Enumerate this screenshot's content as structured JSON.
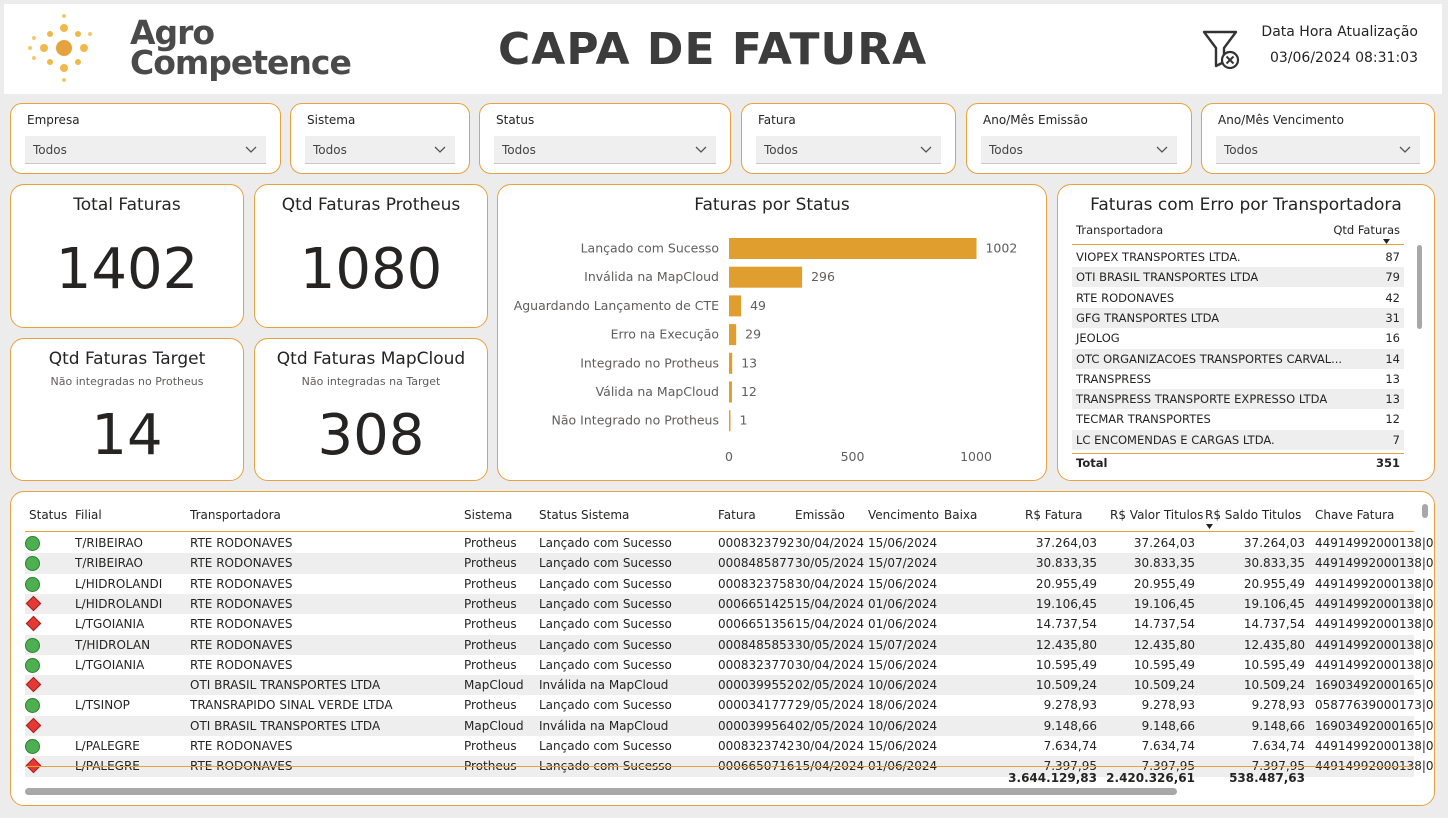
{
  "header": {
    "logo_text_line1": "Agro",
    "logo_text_line2": "Competence",
    "title": "CAPA DE FATURA",
    "update_label": "Data Hora Atualização",
    "update_value": "03/06/2024 08:31:03",
    "filter_icon": "clear-filter-icon"
  },
  "slicers": [
    {
      "label": "Empresa",
      "value": "Todos"
    },
    {
      "label": "Sistema",
      "value": "Todos"
    },
    {
      "label": "Status",
      "value": "Todos"
    },
    {
      "label": "Fatura",
      "value": "Todos"
    },
    {
      "label": "Ano/Mês Emissão",
      "value": "Todos"
    },
    {
      "label": "Ano/Mês Vencimento",
      "value": "Todos"
    }
  ],
  "cards": {
    "total": {
      "title": "Total Faturas",
      "value": "1402"
    },
    "protheus": {
      "title": "Qtd Faturas Protheus",
      "value": "1080"
    },
    "target": {
      "title": "Qtd Faturas Target",
      "subtitle": "Não integradas no Protheus",
      "value": "14"
    },
    "mapcloud": {
      "title": "Qtd Faturas MapCloud",
      "subtitle": "Não integradas na Target",
      "value": "308"
    }
  },
  "chart_data": {
    "type": "bar",
    "orientation": "horizontal",
    "title": "Faturas por Status",
    "categories": [
      "Lançado com Sucesso",
      "Inválida na MapCloud",
      "Aguardando Lançamento de CTE",
      "Erro na Execução",
      "Integrado no Protheus",
      "Válida na MapCloud",
      "Não Integrado no Protheus"
    ],
    "values": [
      1002,
      296,
      49,
      29,
      13,
      12,
      1
    ],
    "xlim": [
      0,
      1000
    ],
    "xticks": [
      "0",
      "500",
      "1000"
    ],
    "bar_color": "#e09e2f",
    "grid": false
  },
  "erro_table": {
    "title": "Faturas com Erro por Transportadora",
    "col_name": "Transportadora",
    "col_value": "Qtd Faturas",
    "rows": [
      {
        "name": "VIOPEX TRANSPORTES LTDA.",
        "value": "87"
      },
      {
        "name": "OTI BRASIL TRANSPORTES LTDA",
        "value": "79"
      },
      {
        "name": "RTE RODONAVES",
        "value": "42"
      },
      {
        "name": "GFG TRANSPORTES LTDA",
        "value": "31"
      },
      {
        "name": "JEOLOG",
        "value": "16"
      },
      {
        "name": "OTC ORGANIZACOES TRANSPORTES CARVAL...",
        "value": "14"
      },
      {
        "name": "TRANSPRESS",
        "value": "13"
      },
      {
        "name": "TRANSPRESS TRANSPORTE EXPRESSO LTDA",
        "value": "13"
      },
      {
        "name": "TECMAR TRANSPORTES",
        "value": "12"
      },
      {
        "name": "LC ENCOMENDAS E CARGAS LTDA.",
        "value": "7"
      }
    ],
    "total_label": "Total",
    "total_value": "351"
  },
  "grid": {
    "columns": [
      "Status",
      "Filial",
      "Transportadora",
      "Sistema",
      "Status Sistema",
      "Fatura",
      "Emissão",
      "Vencimento",
      "Baixa",
      "R$ Fatura",
      "R$ Valor Titulos",
      "R$ Saldo Titulos",
      "Chave Fatura"
    ],
    "rows": [
      {
        "status": "ok",
        "filial": "T/RIBEIRAO",
        "transp": "RTE RODONAVES",
        "sistema": "Protheus",
        "status_sis": "Lançado com Sucesso",
        "fatura": "0008323792",
        "emissao": "30/04/2024",
        "venc": "15/06/2024",
        "baixa": "",
        "vf": "37.264,03",
        "vt": "37.264,03",
        "vs": "37.264,03",
        "chave": "44914992000138|0"
      },
      {
        "status": "ok",
        "filial": "T/RIBEIRAO",
        "transp": "RTE RODONAVES",
        "sistema": "Protheus",
        "status_sis": "Lançado com Sucesso",
        "fatura": "0008485877",
        "emissao": "30/05/2024",
        "venc": "15/07/2024",
        "baixa": "",
        "vf": "30.833,35",
        "vt": "30.833,35",
        "vs": "30.833,35",
        "chave": "44914992000138|0"
      },
      {
        "status": "ok",
        "filial": "L/HIDROLANDI",
        "transp": "RTE RODONAVES",
        "sistema": "Protheus",
        "status_sis": "Lançado com Sucesso",
        "fatura": "0008323758",
        "emissao": "30/04/2024",
        "venc": "15/06/2024",
        "baixa": "",
        "vf": "20.955,49",
        "vt": "20.955,49",
        "vs": "20.955,49",
        "chave": "44914992000138|0"
      },
      {
        "status": "err",
        "filial": "L/HIDROLANDI",
        "transp": "RTE RODONAVES",
        "sistema": "Protheus",
        "status_sis": "Lançado com Sucesso",
        "fatura": "0006651425",
        "emissao": "15/04/2024",
        "venc": "01/06/2024",
        "baixa": "",
        "vf": "19.106,45",
        "vt": "19.106,45",
        "vs": "19.106,45",
        "chave": "44914992000138|0"
      },
      {
        "status": "err",
        "filial": "L/TGOIANIA",
        "transp": "RTE RODONAVES",
        "sistema": "Protheus",
        "status_sis": "Lançado com Sucesso",
        "fatura": "0006651356",
        "emissao": "15/04/2024",
        "venc": "01/06/2024",
        "baixa": "",
        "vf": "14.737,54",
        "vt": "14.737,54",
        "vs": "14.737,54",
        "chave": "44914992000138|0"
      },
      {
        "status": "ok",
        "filial": "T/HIDROLAN",
        "transp": "RTE RODONAVES",
        "sistema": "Protheus",
        "status_sis": "Lançado com Sucesso",
        "fatura": "0008485853",
        "emissao": "30/05/2024",
        "venc": "15/07/2024",
        "baixa": "",
        "vf": "12.435,80",
        "vt": "12.435,80",
        "vs": "12.435,80",
        "chave": "44914992000138|0"
      },
      {
        "status": "ok",
        "filial": "L/TGOIANIA",
        "transp": "RTE RODONAVES",
        "sistema": "Protheus",
        "status_sis": "Lançado com Sucesso",
        "fatura": "0008323770",
        "emissao": "30/04/2024",
        "venc": "15/06/2024",
        "baixa": "",
        "vf": "10.595,49",
        "vt": "10.595,49",
        "vs": "10.595,49",
        "chave": "44914992000138|0"
      },
      {
        "status": "err",
        "filial": "",
        "transp": "OTI BRASIL TRANSPORTES LTDA",
        "sistema": "MapCloud",
        "status_sis": "Inválida na MapCloud",
        "fatura": "0000399552",
        "emissao": "02/05/2024",
        "venc": "10/06/2024",
        "baixa": "",
        "vf": "10.509,24",
        "vt": "10.509,24",
        "vs": "10.509,24",
        "chave": "16903492000165|0"
      },
      {
        "status": "ok",
        "filial": "L/TSINOP",
        "transp": "TRANSRAPIDO SINAL VERDE LTDA",
        "sistema": "Protheus",
        "status_sis": "Lançado com Sucesso",
        "fatura": "0000341777",
        "emissao": "29/05/2024",
        "venc": "18/06/2024",
        "baixa": "",
        "vf": "9.278,93",
        "vt": "9.278,93",
        "vs": "9.278,93",
        "chave": "05877639000173|0"
      },
      {
        "status": "err",
        "filial": "",
        "transp": "OTI BRASIL TRANSPORTES LTDA",
        "sistema": "MapCloud",
        "status_sis": "Inválida na MapCloud",
        "fatura": "0000399564",
        "emissao": "02/05/2024",
        "venc": "10/06/2024",
        "baixa": "",
        "vf": "9.148,66",
        "vt": "9.148,66",
        "vs": "9.148,66",
        "chave": "16903492000165|0"
      },
      {
        "status": "ok",
        "filial": "L/PALEGRE",
        "transp": "RTE RODONAVES",
        "sistema": "Protheus",
        "status_sis": "Lançado com Sucesso",
        "fatura": "0008323742",
        "emissao": "30/04/2024",
        "venc": "15/06/2024",
        "baixa": "",
        "vf": "7.634,74",
        "vt": "7.634,74",
        "vs": "7.634,74",
        "chave": "44914992000138|0"
      },
      {
        "status": "err",
        "filial": "L/PALEGRE",
        "transp": "RTE RODONAVES",
        "sistema": "Protheus",
        "status_sis": "Lançado com Sucesso",
        "fatura": "0006650716",
        "emissao": "15/04/2024",
        "venc": "01/06/2024",
        "baixa": "",
        "vf": "7.397,95",
        "vt": "7.397,95",
        "vs": "7.397,95",
        "chave": "44914992000138|0"
      }
    ],
    "totals": {
      "vf": "3.644.129,83",
      "vt": "2.420.326,61",
      "vs": "538.487,63"
    }
  },
  "colors": {
    "accent": "#e6a23c",
    "bar": "#e09e2f",
    "ok": "#4caf50",
    "error": "#e53935"
  }
}
